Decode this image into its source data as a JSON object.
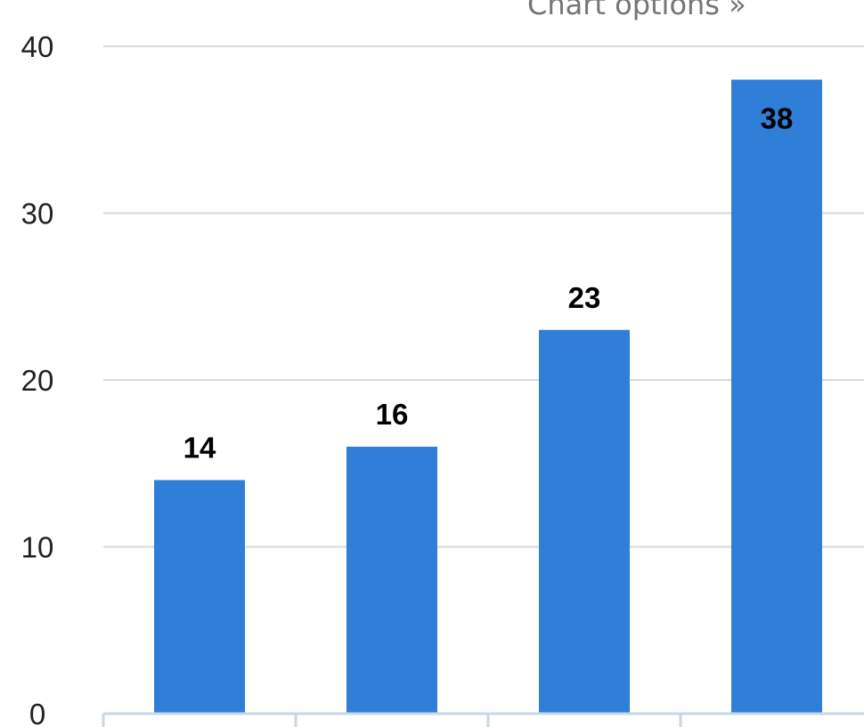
{
  "links": {
    "chart_options": "Chart options »"
  },
  "chart_data": {
    "type": "bar",
    "categories": [
      "",
      "",
      "",
      ""
    ],
    "values": [
      14,
      16,
      23,
      38
    ],
    "data_labels": [
      "14",
      "16",
      "23",
      "38"
    ],
    "title": "",
    "xlabel": "",
    "ylabel": "",
    "ylim": [
      0,
      40
    ],
    "yticks": [
      0,
      10,
      20,
      30,
      40
    ],
    "ytick_labels": [
      "0",
      "10",
      "20",
      "30",
      "40"
    ],
    "grid": true,
    "legend": "none",
    "colors": {
      "bar": "#2f7ed8",
      "grid": "#d9d9d9",
      "axis": "#c8d6e8"
    }
  }
}
